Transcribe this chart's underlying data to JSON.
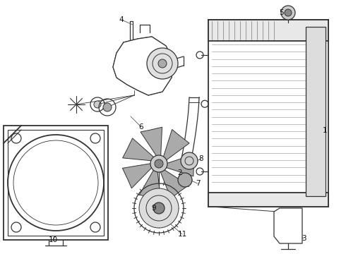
{
  "bg_color": "#ffffff",
  "line_color": "#333333",
  "label_color": "#111111",
  "fig_width": 4.9,
  "fig_height": 3.6,
  "dpi": 100
}
